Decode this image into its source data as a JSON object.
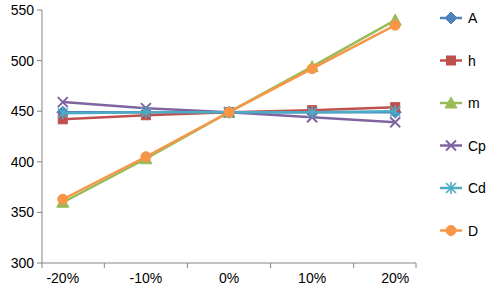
{
  "chart_data": {
    "type": "line",
    "categories": [
      "-20%",
      "-10%",
      "0%",
      "10%",
      "20%"
    ],
    "series": [
      {
        "name": "A",
        "color": "#4f81bd",
        "marker": "diamond",
        "line_style": "solid",
        "values": [
          449,
          449,
          449,
          449,
          449
        ]
      },
      {
        "name": "h",
        "color": "#c0504d",
        "marker": "square",
        "line_style": "solid",
        "values": [
          442,
          446,
          449,
          451,
          454
        ]
      },
      {
        "name": "m",
        "color": "#9bbb59",
        "marker": "triangle",
        "line_style": "solid",
        "values": [
          360,
          403,
          449,
          494,
          540
        ]
      },
      {
        "name": "Cp",
        "color": "#8064a2",
        "marker": "x",
        "line_style": "solid",
        "values": [
          459,
          453,
          449,
          444,
          439
        ]
      },
      {
        "name": "Cd",
        "color": "#4bacc6",
        "marker": "star",
        "line_style": "solid",
        "values": [
          448,
          449,
          449,
          449,
          450
        ]
      },
      {
        "name": "D",
        "color": "#f79646",
        "marker": "circle",
        "line_style": "solid",
        "values": [
          363,
          405,
          449,
          492,
          535
        ]
      }
    ],
    "ylim": [
      300,
      550
    ],
    "yticks": [
      300,
      350,
      400,
      450,
      500,
      550
    ],
    "grid": false,
    "legend": "right"
  }
}
